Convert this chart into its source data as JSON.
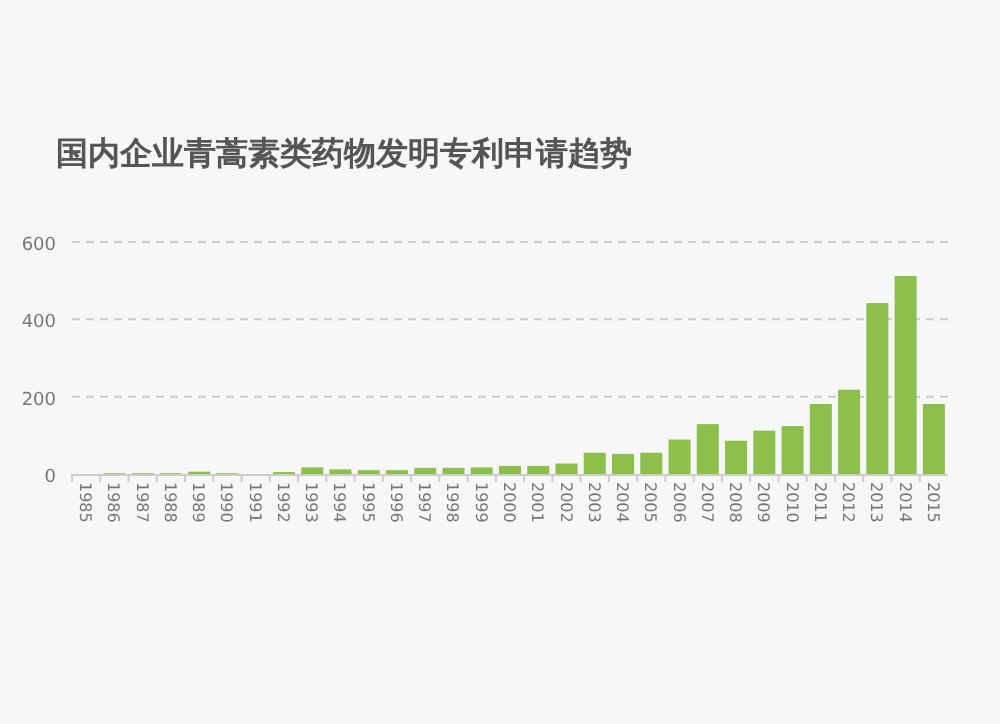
{
  "chart_data": {
    "type": "bar",
    "title": "国内企业青蒿素类药物发明专利申请趋势",
    "categories": [
      "1985",
      "1986",
      "1987",
      "1988",
      "1989",
      "1990",
      "1991",
      "1992",
      "1993",
      "1994",
      "1995",
      "1996",
      "1997",
      "1998",
      "1999",
      "2000",
      "2001",
      "2002",
      "2003",
      "2004",
      "2005",
      "2006",
      "2007",
      "2008",
      "2009",
      "2010",
      "2011",
      "2012",
      "2013",
      "2014",
      "2015"
    ],
    "values": [
      0,
      2,
      2,
      2,
      6,
      2,
      0,
      5,
      17,
      12,
      10,
      10,
      16,
      16,
      17,
      21,
      21,
      27,
      55,
      52,
      55,
      89,
      129,
      86,
      112,
      124,
      181,
      218,
      442,
      512,
      181
    ],
    "color": "#8cbf4b",
    "ylim": [
      0,
      600
    ],
    "yticks": [
      0,
      200,
      400,
      600
    ],
    "grid": "y"
  }
}
